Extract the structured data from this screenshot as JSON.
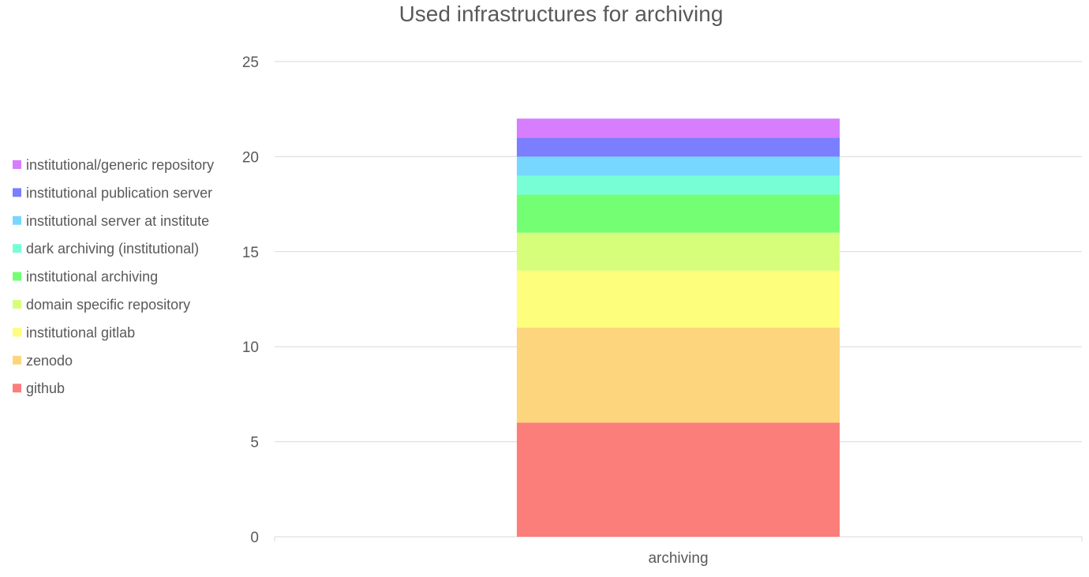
{
  "chart_data": {
    "type": "bar",
    "stacked": true,
    "title": "Used infrastructures for archiving",
    "categories": [
      "archiving"
    ],
    "ylim": [
      0,
      25
    ],
    "yticks": [
      0,
      5,
      10,
      15,
      20,
      25
    ],
    "grid": true,
    "legend_position": "left",
    "series": [
      {
        "name": "github",
        "values": [
          6
        ],
        "color": "#FB7E7B"
      },
      {
        "name": "zenodo",
        "values": [
          5
        ],
        "color": "#FCD57D"
      },
      {
        "name": "institutional gitlab",
        "values": [
          3
        ],
        "color": "#FDFE7B"
      },
      {
        "name": "domain specific repository",
        "values": [
          2
        ],
        "color": "#D7FE7B"
      },
      {
        "name": "institutional archiving",
        "values": [
          2
        ],
        "color": "#74FE74"
      },
      {
        "name": "dark archiving (institutional)",
        "values": [
          1
        ],
        "color": "#77FED5"
      },
      {
        "name": "institutional server at institute",
        "values": [
          1
        ],
        "color": "#77D7FE"
      },
      {
        "name": "institutional publication server",
        "values": [
          1
        ],
        "color": "#7B7EFE"
      },
      {
        "name": "institutional/generic repository",
        "values": [
          1
        ],
        "color": "#D67EFD"
      }
    ]
  }
}
